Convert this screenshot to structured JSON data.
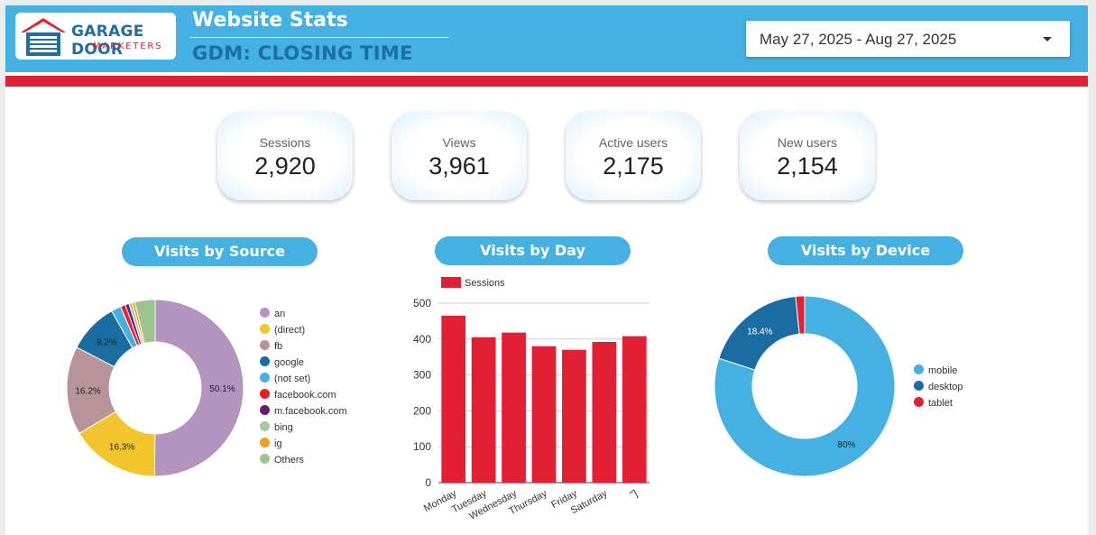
{
  "header": {
    "logo_line1": "GARAGE DOOR",
    "logo_line2": "MARKETERS",
    "title": "Website Stats",
    "subtitle": "GDM: CLOSING TIME",
    "date_range": "May 27, 2025 - Aug 27, 2025",
    "accent": "#45b1e3",
    "brand_red": "#e21f33",
    "brand_blue": "#1c6ea4"
  },
  "kpis": [
    {
      "label": "Sessions",
      "value": "2,920"
    },
    {
      "label": "Views",
      "value": "3,961"
    },
    {
      "label": "Active users",
      "value": "2,175"
    },
    {
      "label": "New users",
      "value": "2,154"
    }
  ],
  "sections": {
    "source": "Visits by Source",
    "day": "Visits by Day",
    "device": "Visits by Device"
  },
  "chart_data": [
    {
      "type": "pie",
      "title": "Visits by Source",
      "categories": [
        "an",
        "(direct)",
        "fb",
        "google",
        "(not set)",
        "facebook.com",
        "m.facebook.com",
        "bing",
        "ig",
        "Others"
      ],
      "values": [
        50.1,
        16.3,
        16.2,
        9.2,
        1.8,
        0.9,
        0.7,
        0.6,
        0.5,
        3.7
      ],
      "labels": [
        "50.1%",
        "16.3%",
        "16.2%",
        "9.2%",
        "",
        "",
        "",
        "",
        "",
        ""
      ],
      "colors": [
        "#b593bf",
        "#f2c52d",
        "#b8949a",
        "#1a6da3",
        "#45b1e3",
        "#ee1c25",
        "#6a1b7a",
        "#a8c8a0",
        "#f39c1e",
        "#9ec38f"
      ],
      "legend": "right"
    },
    {
      "type": "bar",
      "title": "Visits by Day",
      "categories": [
        "Monday",
        "Tuesday",
        "Wednesday",
        "Thursday",
        "Friday",
        "Saturday",
        "\"]"
      ],
      "series": [
        {
          "name": "Sessions",
          "values": [
            465,
            405,
            418,
            380,
            370,
            392,
            408
          ]
        }
      ],
      "ylim": [
        0,
        500
      ],
      "yticks": [
        0,
        100,
        200,
        300,
        400,
        500
      ],
      "grid": true,
      "legend": "top-left",
      "color": "#e21f33"
    },
    {
      "type": "pie",
      "title": "Visits by Device",
      "categories": [
        "mobile",
        "desktop",
        "tablet"
      ],
      "values": [
        80,
        18.4,
        1.6
      ],
      "labels": [
        "80%",
        "18.4%",
        ""
      ],
      "colors": [
        "#45b1e3",
        "#1a6da3",
        "#e21f33"
      ],
      "legend": "right"
    }
  ]
}
